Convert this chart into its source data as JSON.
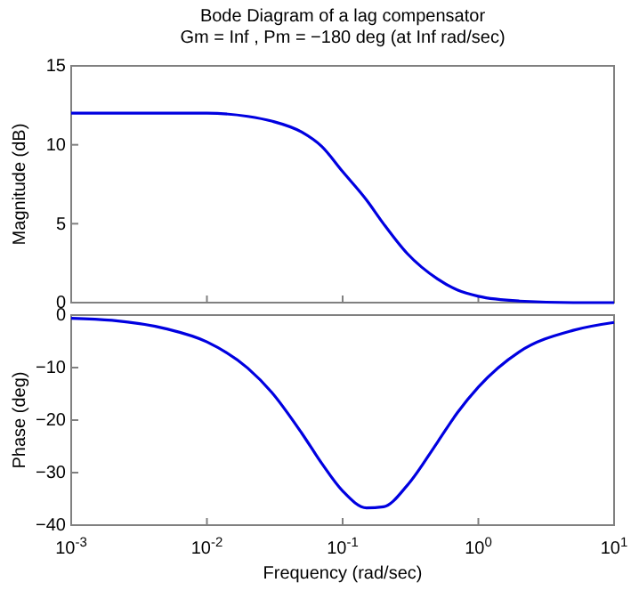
{
  "chart_data": [
    {
      "type": "line",
      "title": "Bode Diagram of a lag compensator",
      "subtitle": "Gm = Inf ,  Pm = −180 deg (at Inf rad/sec)",
      "ylabel": "Magnitude (dB)",
      "log": "x",
      "x": [
        0.001,
        0.002,
        0.005,
        0.01,
        0.02,
        0.03,
        0.05,
        0.07,
        0.1,
        0.15,
        0.2,
        0.3,
        0.5,
        0.7,
        1,
        2,
        5,
        10
      ],
      "series": [
        {
          "color": "#0000e0",
          "values": [
            12.0,
            12.0,
            12.0,
            12.0,
            11.8,
            11.5,
            10.8,
            9.9,
            8.3,
            6.5,
            5.0,
            3.1,
            1.5,
            0.8,
            0.4,
            0.1,
            0.0,
            0.0
          ]
        }
      ],
      "xlim": [
        0.001,
        10
      ],
      "xticks": [
        {
          "value": 0.001,
          "label": null
        },
        {
          "value": 0.01,
          "label": null
        },
        {
          "value": 0.1,
          "label": null
        },
        {
          "value": 1,
          "label": null
        },
        {
          "value": 10,
          "label": null
        }
      ],
      "ylim": [
        0,
        15
      ],
      "yticks": [
        0,
        5,
        10,
        15
      ],
      "tick_labels": "y",
      "grid": false
    },
    {
      "type": "line",
      "xlabel": "Frequency  (rad/sec)",
      "ylabel": "Phase (deg)",
      "log": "x",
      "x": [
        0.001,
        0.002,
        0.005,
        0.01,
        0.02,
        0.03,
        0.05,
        0.07,
        0.1,
        0.15,
        0.2,
        0.3,
        0.5,
        0.7,
        1,
        2,
        5,
        10
      ],
      "series": [
        {
          "color": "#0000e0",
          "values": [
            -0.6,
            -1.0,
            -2.6,
            -5.1,
            -10.1,
            -14.7,
            -22.5,
            -28.2,
            -33.5,
            -36.7,
            -36.5,
            -32.4,
            -24.2,
            -18.6,
            -13.7,
            -7.0,
            -2.9,
            -1.4
          ]
        }
      ],
      "xlim": [
        0.001,
        10
      ],
      "xticks": [
        {
          "value": 0.001,
          "label": "10$^{-3}$"
        },
        {
          "value": 0.01,
          "label": "10$^{-2}$"
        },
        {
          "value": 0.1,
          "label": "10$^{-1}$"
        },
        {
          "value": 1,
          "label": "10$^{0}$"
        },
        {
          "value": 10,
          "label": "10$^{1}$"
        }
      ],
      "ylim": [
        -40,
        0
      ],
      "yticks": [
        -40,
        -30,
        -20,
        -10,
        0
      ],
      "grid": false
    }
  ]
}
